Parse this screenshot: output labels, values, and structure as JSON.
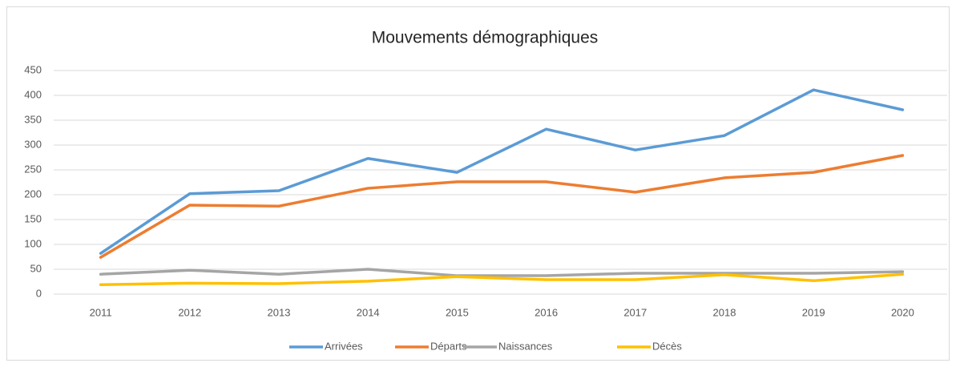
{
  "chart_data": {
    "type": "line",
    "title": "Mouvements démographiques",
    "categories": [
      "2011",
      "2012",
      "2013",
      "2014",
      "2015",
      "2016",
      "2017",
      "2018",
      "2019",
      "2020"
    ],
    "series": [
      {
        "name": "Arrivées",
        "color": "#5b9bd5",
        "values": [
          82,
          202,
          208,
          273,
          245,
          332,
          290,
          319,
          411,
          371
        ]
      },
      {
        "name": "Départs",
        "color": "#ed7d31",
        "values": [
          74,
          179,
          177,
          213,
          226,
          226,
          205,
          234,
          245,
          279
        ]
      },
      {
        "name": "Naissances",
        "color": "#a5a5a5",
        "values": [
          40,
          48,
          40,
          50,
          37,
          37,
          42,
          42,
          42,
          45
        ]
      },
      {
        "name": "Décès",
        "color": "#ffc000",
        "values": [
          19,
          22,
          21,
          26,
          35,
          29,
          29,
          39,
          27,
          40
        ]
      }
    ],
    "ylim": [
      0,
      450
    ],
    "yticks": [
      0,
      50,
      100,
      150,
      200,
      250,
      300,
      350,
      400,
      450
    ],
    "grid": true,
    "legend": "bottom"
  }
}
